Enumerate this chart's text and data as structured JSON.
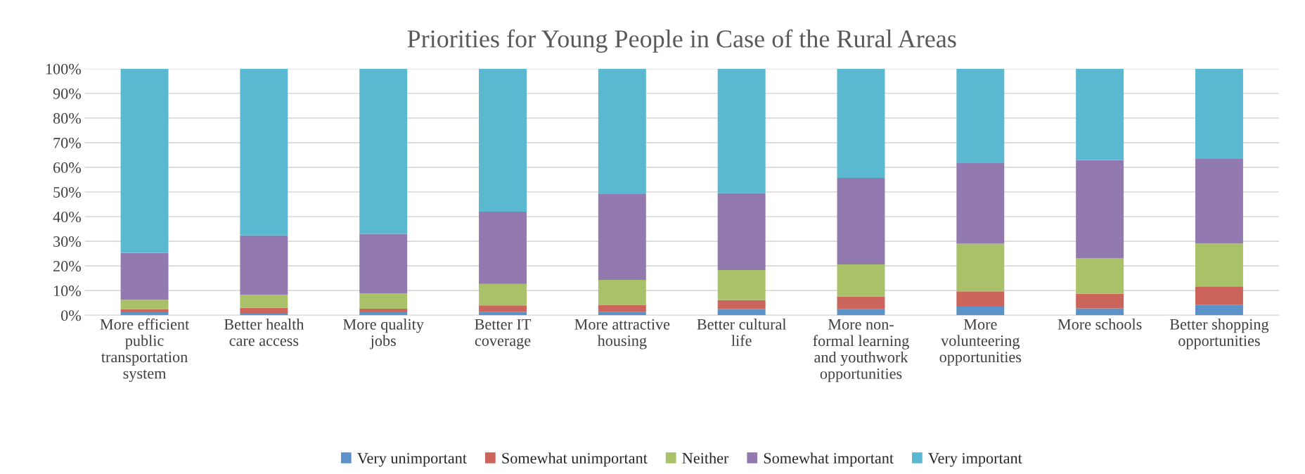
{
  "chart_data": {
    "type": "bar",
    "title": "Priorities for Young People in Case of the Rural Areas",
    "categories": [
      "More efficient\npublic\ntransportation\nsystem",
      "Better health\ncare access",
      "More quality\njobs",
      "Better IT\ncoverage",
      "More attractive\nhousing",
      "Better cultural\nlife",
      "More non-\nformal learning\nand youthwork\nopportunities",
      "More\nvolunteering\nopportunities",
      "More schools",
      "Better shopping\nopportunities"
    ],
    "stacked": true,
    "series": [
      {
        "name": "Very unimportant",
        "color": "#5b93c8",
        "values": [
          1.2,
          0.6,
          1.2,
          1.4,
          1.3,
          2.5,
          2.4,
          3.5,
          2.8,
          4.3
        ]
      },
      {
        "name": "Somewhat unimportant",
        "color": "#cb655c",
        "values": [
          1.3,
          2.4,
          1.4,
          2.6,
          2.9,
          3.6,
          5.2,
          6.2,
          5.9,
          7.4
        ]
      },
      {
        "name": "Neither",
        "color": "#a9c26a",
        "values": [
          3.8,
          5.3,
          6.2,
          8.7,
          10.1,
          12.2,
          13.0,
          19.3,
          14.5,
          17.4
        ]
      },
      {
        "name": "Somewhat important",
        "color": "#927ab0",
        "values": [
          19.0,
          24.1,
          24.2,
          29.3,
          34.8,
          31.2,
          35.1,
          32.9,
          39.8,
          34.3
        ]
      },
      {
        "name": "Very important",
        "color": "#5bb8d1",
        "values": [
          74.7,
          67.6,
          67.0,
          58.0,
          50.9,
          50.5,
          44.3,
          38.1,
          37.0,
          36.6
        ]
      }
    ],
    "ylim": [
      0,
      100
    ],
    "yticks": [
      {
        "value": 0,
        "label": "0%"
      },
      {
        "value": 10,
        "label": "10%"
      },
      {
        "value": 20,
        "label": "20%"
      },
      {
        "value": 30,
        "label": "30%"
      },
      {
        "value": 40,
        "label": "40%"
      },
      {
        "value": 50,
        "label": "50%"
      },
      {
        "value": 60,
        "label": "60%"
      },
      {
        "value": 70,
        "label": "70%"
      },
      {
        "value": 80,
        "label": "80%"
      },
      {
        "value": 90,
        "label": "90%"
      },
      {
        "value": 100,
        "label": "100%"
      }
    ],
    "grid": "y",
    "legend": "bottom"
  }
}
